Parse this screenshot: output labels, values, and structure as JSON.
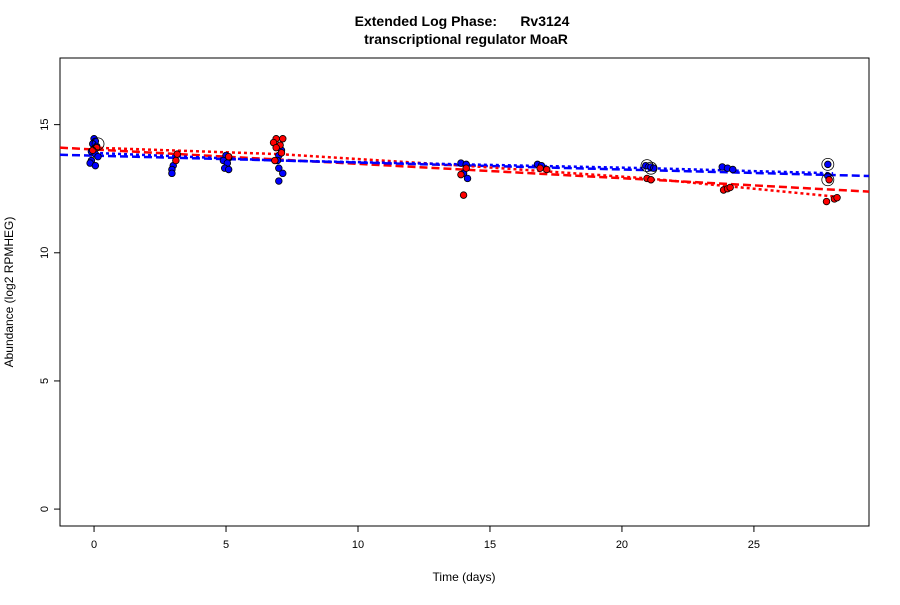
{
  "chart_data": {
    "type": "scatter",
    "title": "Extended Log Phase:      Rv3124",
    "subtitle": "transcriptional regulator MoaR",
    "xlabel": "Time  (days)",
    "ylabel": "Abundance  (log2 RPMHEG)",
    "xlim": [
      -1.29,
      29.36
    ],
    "ylim": [
      -0.66,
      17.6
    ],
    "xticks": [
      0,
      5,
      10,
      15,
      20,
      25
    ],
    "yticks": [
      0,
      5,
      10,
      15
    ],
    "grid": false,
    "colors": {
      "red": "#ff0000",
      "blue": "#0000ff"
    },
    "series": [
      {
        "color": "blue",
        "points": [
          [
            0,
            14.45
          ],
          [
            0.05,
            14.35
          ],
          [
            -0.05,
            14.25
          ],
          [
            0.1,
            14.15
          ],
          [
            0,
            14.05
          ],
          [
            -0.1,
            13.95
          ],
          [
            0.05,
            13.85
          ],
          [
            0.15,
            13.75
          ],
          [
            -0.1,
            13.6
          ],
          [
            -0.15,
            13.5
          ],
          [
            0.05,
            13.4
          ],
          [
            3,
            13.4
          ],
          [
            2.95,
            13.25
          ],
          [
            2.95,
            13.1
          ],
          [
            5,
            13.8
          ],
          [
            5.1,
            13.7
          ],
          [
            4.9,
            13.6
          ],
          [
            5.05,
            13.5
          ],
          [
            4.95,
            13.3
          ],
          [
            5.1,
            13.25
          ],
          [
            7.1,
            14.0
          ],
          [
            7,
            13.8
          ],
          [
            6.95,
            13.6
          ],
          [
            7,
            13.3
          ],
          [
            7.15,
            13.1
          ],
          [
            7,
            12.8
          ],
          [
            13.9,
            13.5
          ],
          [
            14.1,
            13.45
          ],
          [
            14,
            13.1
          ],
          [
            14.15,
            12.9
          ],
          [
            16.8,
            13.45
          ],
          [
            16.95,
            13.4
          ],
          [
            20.9,
            13.4
          ],
          [
            21.1,
            13.35
          ],
          [
            21.2,
            13.3
          ],
          [
            23.8,
            13.35
          ],
          [
            24,
            13.3
          ],
          [
            24.2,
            13.25
          ],
          [
            27.8,
            13.45
          ],
          [
            27.8,
            13.0
          ]
        ]
      },
      {
        "color": "red",
        "points": [
          [
            0.1,
            14.1
          ],
          [
            -0.05,
            14.0
          ],
          [
            3.15,
            13.85
          ],
          [
            3.1,
            13.6
          ],
          [
            5.1,
            13.75
          ],
          [
            6.9,
            14.45
          ],
          [
            7.15,
            14.45
          ],
          [
            6.8,
            14.3
          ],
          [
            7.05,
            14.2
          ],
          [
            6.9,
            14.1
          ],
          [
            7.1,
            13.9
          ],
          [
            6.85,
            13.6
          ],
          [
            14.1,
            13.3
          ],
          [
            13.9,
            13.05
          ],
          [
            14,
            12.25
          ],
          [
            16.9,
            13.3
          ],
          [
            17.15,
            13.25
          ],
          [
            20.95,
            12.9
          ],
          [
            21.1,
            12.85
          ],
          [
            23.85,
            12.45
          ],
          [
            24,
            12.5
          ],
          [
            24.1,
            12.55
          ],
          [
            27.85,
            12.85
          ],
          [
            27.75,
            12.0
          ],
          [
            28.05,
            12.1
          ],
          [
            28.15,
            12.15
          ]
        ]
      }
    ],
    "circled_points": [
      [
        0.15,
        14.25
      ],
      [
        20.95,
        13.4
      ],
      [
        21.1,
        13.3
      ],
      [
        27.8,
        13.45
      ],
      [
        27.8,
        12.85
      ]
    ],
    "fits": [
      {
        "color": "red",
        "style": "dashed",
        "kind": "linear",
        "intercept": 14.03,
        "slope": -0.056
      },
      {
        "color": "blue",
        "style": "dashed",
        "kind": "linear",
        "intercept": 13.79,
        "slope": -0.027
      },
      {
        "color": "red",
        "style": "dotted",
        "kind": "smooth",
        "x": [
          0,
          7,
          14,
          21,
          28
        ],
        "y": [
          14.1,
          13.85,
          13.4,
          12.9,
          12.2
        ]
      },
      {
        "color": "blue",
        "style": "dotted",
        "kind": "smooth",
        "x": [
          0,
          7,
          14,
          21,
          28
        ],
        "y": [
          13.9,
          13.6,
          13.45,
          13.3,
          13.1
        ]
      }
    ]
  }
}
